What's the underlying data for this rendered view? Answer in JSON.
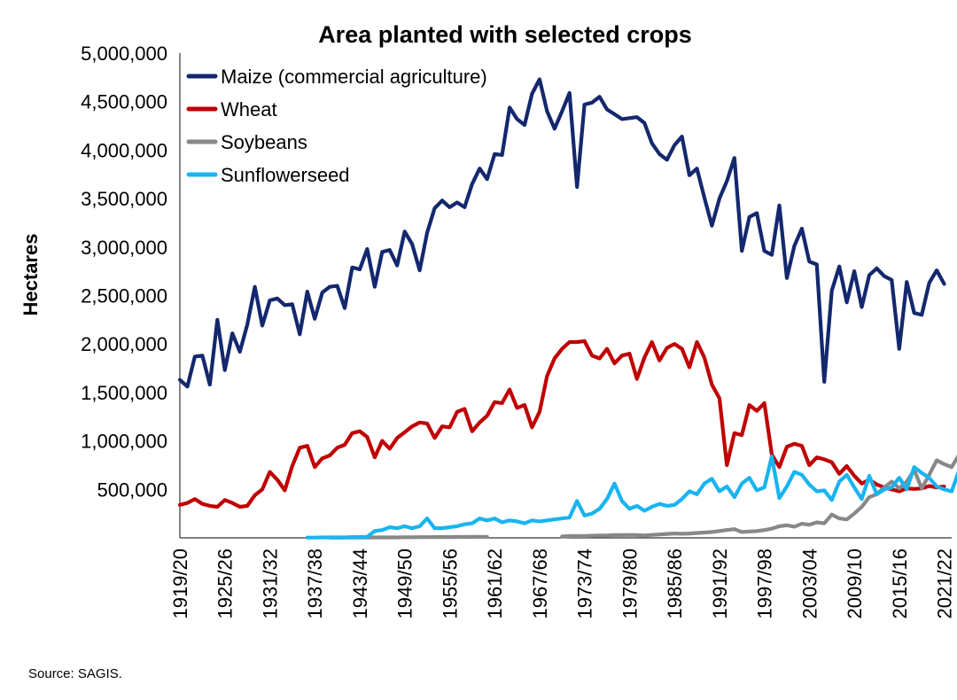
{
  "chart_data": {
    "type": "line",
    "title": "Area planted with selected crops",
    "ylabel": "Hectares",
    "xlabel": "",
    "ylim": [
      0,
      5000000
    ],
    "yticks": [
      500000,
      1000000,
      1500000,
      2000000,
      2500000,
      3000000,
      3500000,
      4000000,
      4500000,
      5000000
    ],
    "ytick_labels": [
      "500,000",
      "1,000,000",
      "1,500,000",
      "2,000,000",
      "2,500,000",
      "3,000,000",
      "3,500,000",
      "4,000,000",
      "4,500,000",
      "5,000,000"
    ],
    "start_year": 1919,
    "end_year": 2022,
    "xtick_labels": [
      "1919/20",
      "1925/26",
      "1931/32",
      "1937/38",
      "1943/44",
      "1949/50",
      "1955/56",
      "1961/62",
      "1967/68",
      "1973/74",
      "1979/80",
      "1985/86",
      "1991/92",
      "1997/98",
      "2003/04",
      "2009/10",
      "2015/16",
      "2021/22"
    ],
    "legend_position": "top-left",
    "grid": false,
    "series": [
      {
        "name": "Maize (commercial agriculture)",
        "color": "#14286E",
        "start_year": 1919,
        "values": [
          1630000,
          1560000,
          1870000,
          1880000,
          1580000,
          2250000,
          1730000,
          2110000,
          1920000,
          2200000,
          2590000,
          2190000,
          2450000,
          2470000,
          2400000,
          2410000,
          2100000,
          2540000,
          2260000,
          2530000,
          2590000,
          2600000,
          2370000,
          2790000,
          2770000,
          2980000,
          2590000,
          2950000,
          2970000,
          2810000,
          3160000,
          3030000,
          2760000,
          3150000,
          3400000,
          3480000,
          3410000,
          3460000,
          3410000,
          3650000,
          3810000,
          3700000,
          3960000,
          3950000,
          4440000,
          4320000,
          4260000,
          4580000,
          4730000,
          4400000,
          4220000,
          4400000,
          4590000,
          3620000,
          4470000,
          4490000,
          4550000,
          4420000,
          4370000,
          4320000,
          4330000,
          4340000,
          4280000,
          4070000,
          3960000,
          3900000,
          4050000,
          4140000,
          3740000,
          3810000,
          3510000,
          3220000,
          3500000,
          3680000,
          3920000,
          2960000,
          3310000,
          3350000,
          2960000,
          2920000,
          3430000,
          2680000,
          3010000,
          3190000,
          2850000,
          2820000,
          1610000,
          2550000,
          2800000,
          2430000,
          2750000,
          2380000,
          2710000,
          2780000,
          2700000,
          2660000,
          1950000,
          2640000,
          2320000,
          2300000,
          2630000,
          2760000,
          2620000
        ]
      },
      {
        "name": "Wheat",
        "color": "#C00000",
        "start_year": 1919,
        "values": [
          340000,
          360000,
          400000,
          350000,
          330000,
          320000,
          390000,
          360000,
          320000,
          330000,
          440000,
          500000,
          680000,
          600000,
          490000,
          740000,
          930000,
          950000,
          730000,
          820000,
          850000,
          930000,
          960000,
          1080000,
          1100000,
          1040000,
          830000,
          1000000,
          920000,
          1030000,
          1090000,
          1150000,
          1190000,
          1180000,
          1030000,
          1150000,
          1140000,
          1300000,
          1330000,
          1100000,
          1190000,
          1260000,
          1400000,
          1390000,
          1530000,
          1340000,
          1370000,
          1140000,
          1300000,
          1670000,
          1850000,
          1950000,
          2020000,
          2020000,
          2030000,
          1880000,
          1850000,
          1950000,
          1800000,
          1880000,
          1900000,
          1640000,
          1860000,
          2020000,
          1830000,
          1960000,
          2000000,
          1950000,
          1760000,
          2020000,
          1860000,
          1580000,
          1440000,
          750000,
          1080000,
          1060000,
          1370000,
          1310000,
          1390000,
          860000,
          730000,
          940000,
          970000,
          950000,
          750000,
          830000,
          810000,
          780000,
          660000,
          740000,
          640000,
          560000,
          600000,
          550000,
          520000,
          500000,
          480000,
          510000,
          505000,
          510000,
          535000,
          520000,
          530000
        ]
      },
      {
        "name": "Soybeans",
        "color": "#888888",
        "segments": [
          {
            "start_year": 1939,
            "values": [
              2000,
              2000,
              3000,
              3000,
              4000,
              4000,
              5000,
              5000,
              5000,
              5000,
              6000,
              6000,
              7000,
              7000,
              8000,
              8000,
              8000,
              9000,
              9000,
              10000,
              10000,
              10000
            ]
          },
          {
            "start_year": 1970,
            "values": [
              15000,
              18000,
              20000,
              18000,
              22000,
              25000,
              25000,
              28000,
              28000,
              30000,
              28000,
              25000,
              30000,
              35000,
              40000,
              45000,
              42000,
              45000,
              50000,
              55000,
              60000,
              70000,
              80000,
              90000,
              60000,
              65000,
              70000,
              80000,
              95000,
              120000,
              130000,
              115000,
              145000,
              135000,
              160000,
              150000,
              240000,
              200000,
              190000,
              250000,
              320000,
              420000,
              450000,
              520000,
              580000,
              510000,
              580000,
              700000,
              510000,
              650000,
              800000,
              760000,
              730000,
              860000,
              950000
            ]
          }
        ]
      },
      {
        "name": "Sunflowerseed",
        "color": "#19B4F0",
        "start_year": 1936,
        "values": [
          3000,
          3000,
          5000,
          5000,
          5000,
          5000,
          8000,
          8000,
          10000,
          70000,
          80000,
          110000,
          100000,
          120000,
          100000,
          120000,
          200000,
          100000,
          100000,
          110000,
          120000,
          140000,
          150000,
          200000,
          180000,
          200000,
          160000,
          180000,
          170000,
          150000,
          180000,
          170000,
          180000,
          190000,
          200000,
          210000,
          380000,
          230000,
          250000,
          300000,
          400000,
          560000,
          380000,
          300000,
          330000,
          280000,
          320000,
          350000,
          330000,
          340000,
          400000,
          480000,
          450000,
          560000,
          610000,
          480000,
          530000,
          420000,
          560000,
          620000,
          490000,
          520000,
          840000,
          410000,
          530000,
          680000,
          650000,
          550000,
          480000,
          490000,
          390000,
          580000,
          650000,
          520000,
          400000,
          640000,
          450000,
          500000,
          520000,
          620000,
          500000,
          730000,
          670000,
          620000,
          530000,
          500000,
          480000,
          700000
        ]
      }
    ]
  },
  "source": "Source: SAGIS."
}
